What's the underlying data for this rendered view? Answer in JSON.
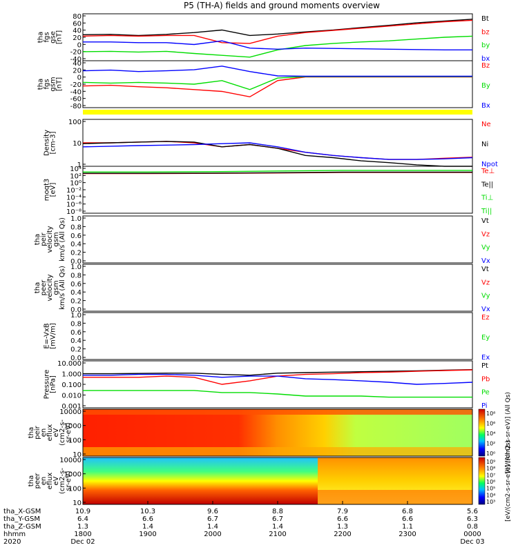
{
  "title": "P5 (TH-A) fields and ground moments overview",
  "colors": {
    "black": "#000000",
    "red": "#ff0000",
    "green": "#00dd00",
    "blue": "#0000ff",
    "yellow": "#ffff00"
  },
  "panels": [
    {
      "id": "fgs-gse",
      "ylabel_lines": [
        "tha",
        "fgs",
        "gse",
        "[nT]"
      ],
      "ticks": [
        "80",
        "60",
        "40",
        "20",
        "0",
        "-20",
        "-40"
      ],
      "legend": [
        {
          "label": "Bt",
          "color": "black"
        },
        {
          "label": "bz",
          "color": "red"
        },
        {
          "label": "by",
          "color": "green"
        },
        {
          "label": "bx",
          "color": "blue"
        }
      ]
    },
    {
      "id": "fgs-gsm",
      "ylabel_lines": [
        "tha",
        "fgs",
        "gsm",
        "[nT]"
      ],
      "ticks": [
        "40",
        "20",
        "0",
        "-20",
        "-40",
        "-60",
        "-80"
      ],
      "legend": [
        {
          "label": "Bz",
          "color": "red"
        },
        {
          "label": "By",
          "color": "green"
        },
        {
          "label": "Bx",
          "color": "blue"
        }
      ]
    },
    {
      "id": "density",
      "ylabel_lines": [
        "Density",
        "[cm-3]"
      ],
      "ticks": [
        "100",
        "10",
        "1"
      ],
      "legend": [
        {
          "label": "Ne",
          "color": "red"
        },
        {
          "label": "Ni",
          "color": "black"
        },
        {
          "label": "Npot",
          "color": "blue"
        }
      ]
    },
    {
      "id": "temperature",
      "ylabel_lines": [
        "moqt3",
        "[eV]"
      ],
      "ticks": [
        "10⁴",
        "10²",
        "10⁰",
        "10⁻²",
        "10⁻⁴",
        "10⁻⁶",
        "10⁻⁸"
      ],
      "legend": [
        {
          "label": "Te⊥",
          "color": "red"
        },
        {
          "label": "Te||",
          "color": "black"
        },
        {
          "label": "Ti⊥",
          "color": "green"
        },
        {
          "label": "Ti||",
          "color": "green"
        }
      ]
    },
    {
      "id": "peir-velocity",
      "ylabel_lines": [
        "tha",
        "peir",
        "velocity",
        "gsm",
        "km/s (All Qs)"
      ],
      "ticks": [
        "1.0",
        "0.8",
        "0.6",
        "0.4",
        "0.2",
        "0.0"
      ],
      "legend": [
        {
          "label": "Vt",
          "color": "black"
        },
        {
          "label": "Vz",
          "color": "red"
        },
        {
          "label": "Vy",
          "color": "green"
        },
        {
          "label": "Vx",
          "color": "blue"
        }
      ]
    },
    {
      "id": "peer-velocity",
      "ylabel_lines": [
        "tha",
        "peer",
        "velocity",
        "gsm",
        "km/s (All Qs)"
      ],
      "ticks": [
        "1.0",
        "0.8",
        "0.6",
        "0.4",
        "0.2",
        "0.0"
      ],
      "legend": [
        {
          "label": "Vt",
          "color": "black"
        },
        {
          "label": "Vz",
          "color": "red"
        },
        {
          "label": "Vy",
          "color": "green"
        },
        {
          "label": "Vx",
          "color": "blue"
        }
      ]
    },
    {
      "id": "efield",
      "ylabel_lines": [
        "E=-VxB",
        "[mV/m]"
      ],
      "ticks": [
        "1.0",
        "0.8",
        "0.6",
        "0.4",
        "0.2",
        "0.0"
      ],
      "legend": [
        {
          "label": "Ez",
          "color": "red"
        },
        {
          "label": "Ey",
          "color": "green"
        },
        {
          "label": "Ex",
          "color": "blue"
        }
      ]
    },
    {
      "id": "pressure",
      "ylabel_lines": [
        "Pressure",
        "[nPa]"
      ],
      "ticks": [
        "10.000",
        "1.000",
        "0.100",
        "0.010",
        "0.001"
      ],
      "legend": [
        {
          "label": "Pt",
          "color": "black"
        },
        {
          "label": "Pb",
          "color": "red"
        },
        {
          "label": "Pe",
          "color": "green"
        },
        {
          "label": "Pi",
          "color": "blue"
        }
      ]
    },
    {
      "id": "peir-spectrogram",
      "ylabel_lines": [
        "tha",
        "peir",
        "en",
        "eflux",
        "eV",
        "(cm2-s-",
        "sr-eV)"
      ],
      "ticks": [
        "10000",
        "1000",
        "100",
        "10"
      ],
      "colorbar_ticks": [
        "10⁸",
        "10⁶",
        "10⁴",
        "10²",
        "10⁰"
      ],
      "colorbar_label": "[eV/(cm2-s-sr-eV)] (All Qs)"
    },
    {
      "id": "peer-spectrogram",
      "ylabel_lines": [
        "tha",
        "peer",
        "en",
        "eflux",
        "eV",
        "(cm2-s-",
        "sr-eV)"
      ],
      "ticks": [
        "10000",
        "1000",
        "100",
        "10"
      ],
      "colorbar_ticks": [
        "10⁹",
        "10⁸",
        "10⁷",
        "10⁶",
        "10⁵",
        "10⁴",
        "10³"
      ],
      "colorbar_label": "[eV/(cm2-s-sr-eV)] (All Qs)"
    }
  ],
  "x_axis": {
    "rows": [
      {
        "label": "tha_X-GSM",
        "values": [
          "10.9",
          "10.3",
          "9.6",
          "8.8",
          "7.9",
          "6.8",
          "5.6"
        ]
      },
      {
        "label": "tha_Y-GSM",
        "values": [
          "6.4",
          "6.6",
          "6.7",
          "6.7",
          "6.6",
          "6.6",
          "6.3"
        ]
      },
      {
        "label": "tha_Z-GSM",
        "values": [
          "1.3",
          "1.4",
          "1.4",
          "1.4",
          "1.3",
          "1.1",
          "0.8"
        ]
      },
      {
        "label": "hhmm",
        "values": [
          "1800",
          "1900",
          "2000",
          "2100",
          "2200",
          "2300",
          "0000"
        ]
      },
      {
        "label": "2020",
        "values": [
          "Dec 02",
          "",
          "",
          "",
          "",
          "",
          "Dec 03"
        ]
      }
    ]
  },
  "chart_data": [
    {
      "type": "line",
      "title": "P5 (TH-A) fields and ground moments overview",
      "ylabel": "tha fgs gse [nT]",
      "ylim": [
        -40,
        90
      ],
      "x": [
        "1800",
        "1830",
        "1900",
        "1930",
        "2000",
        "2015",
        "2030",
        "2045",
        "2100",
        "2130",
        "2200",
        "2230",
        "2300",
        "2330",
        "0000"
      ],
      "series": [
        {
          "name": "Bt",
          "values": [
            32,
            33,
            30,
            33,
            38,
            45,
            30,
            34,
            40,
            45,
            52,
            58,
            65,
            70,
            75
          ]
        },
        {
          "name": "bz",
          "values": [
            28,
            30,
            28,
            30,
            30,
            10,
            8,
            28,
            38,
            44,
            50,
            56,
            62,
            68,
            72
          ]
        },
        {
          "name": "by",
          "values": [
            -15,
            -14,
            -16,
            -14,
            -20,
            -25,
            -30,
            -10,
            2,
            8,
            12,
            15,
            20,
            25,
            28
          ]
        },
        {
          "name": "bx",
          "values": [
            12,
            12,
            10,
            10,
            5,
            15,
            -5,
            -8,
            -5,
            -6,
            -7,
            -8,
            -9,
            -10,
            -10
          ]
        }
      ]
    },
    {
      "type": "line",
      "ylabel": "tha fgs gsm [nT]",
      "ylim": [
        -90,
        40
      ],
      "x": [
        "1800",
        "1830",
        "1900",
        "1930",
        "2000",
        "2015",
        "2030",
        "2045",
        "2100",
        "2130",
        "2200",
        "2230",
        "2300",
        "2330",
        "0000"
      ],
      "series": [
        {
          "name": "Bz",
          "values": [
            -30,
            -28,
            -32,
            -35,
            -40,
            -45,
            -60,
            -15,
            -5,
            -5,
            -5,
            -5,
            -5,
            -5,
            -5
          ]
        },
        {
          "name": "By",
          "values": [
            -20,
            -22,
            -20,
            -22,
            -25,
            -15,
            -40,
            -8,
            -4,
            -4,
            -4,
            -4,
            -4,
            -4,
            -4
          ]
        },
        {
          "name": "Bx",
          "values": [
            12,
            14,
            10,
            12,
            15,
            25,
            10,
            -2,
            -3,
            -3,
            -3,
            -3,
            -3,
            -3,
            -3
          ]
        }
      ]
    },
    {
      "type": "line",
      "ylabel": "Density [cm-3]",
      "ylim": [
        0.5,
        200
      ],
      "yscale": "log",
      "x": [
        "1800",
        "1830",
        "1900",
        "1930",
        "2000",
        "2015",
        "2030",
        "2045",
        "2100",
        "2130",
        "2200",
        "2230",
        "2300",
        "2330",
        "0000"
      ],
      "series": [
        {
          "name": "Ne",
          "values": [
            10,
            10,
            11,
            12,
            10,
            6,
            8,
            5,
            3,
            2,
            1.5,
            1.2,
            1.2,
            1.4,
            1.6
          ]
        },
        {
          "name": "Ni",
          "values": [
            9,
            10,
            11,
            12,
            11,
            6,
            8,
            5,
            2,
            1.5,
            1,
            0.8,
            0.6,
            0.5,
            0.5
          ]
        },
        {
          "name": "Npot",
          "values": [
            6,
            6.5,
            7,
            7.5,
            8,
            9,
            10,
            6,
            3,
            2,
            1.5,
            1.2,
            1.2,
            1.3,
            1.5
          ]
        }
      ]
    },
    {
      "type": "line",
      "ylabel": "moqt3 [eV]",
      "ylim": [
        1e-09,
        100000.0
      ],
      "yscale": "log",
      "x": [
        "1800",
        "1900",
        "2000",
        "2100",
        "2200",
        "2300",
        "0000"
      ],
      "series": [
        {
          "name": "Te⊥",
          "values": [
            700,
            700,
            800,
            1000,
            1500,
            1500,
            1500
          ]
        },
        {
          "name": "Te||",
          "values": [
            800,
            800,
            900,
            1200,
            1800,
            1800,
            1800
          ]
        },
        {
          "name": "Ti⊥",
          "values": [
            2000,
            2000,
            2500,
            4000,
            6000,
            6000,
            6000
          ]
        }
      ]
    },
    {
      "type": "line",
      "ylabel": "Pressure [nPa]",
      "ylim": [
        0.001,
        10
      ],
      "yscale": "log",
      "x": [
        "1800",
        "1830",
        "1900",
        "1930",
        "2000",
        "2015",
        "2030",
        "2045",
        "2100",
        "2130",
        "2200",
        "2230",
        "2300",
        "2330",
        "0000"
      ],
      "series": [
        {
          "name": "Pt",
          "values": [
            0.8,
            0.8,
            0.85,
            0.9,
            0.9,
            0.7,
            0.6,
            0.9,
            1.0,
            1.1,
            1.2,
            1.3,
            1.4,
            1.6,
            1.8
          ]
        },
        {
          "name": "Pb",
          "values": [
            0.4,
            0.4,
            0.4,
            0.5,
            0.4,
            0.1,
            0.2,
            0.5,
            0.7,
            0.8,
            1.0,
            1.1,
            1.3,
            1.5,
            1.7
          ]
        },
        {
          "name": "Pe",
          "values": [
            0.03,
            0.03,
            0.03,
            0.03,
            0.03,
            0.02,
            0.02,
            0.015,
            0.01,
            0.01,
            0.01,
            0.008,
            0.008,
            0.008,
            0.008
          ]
        },
        {
          "name": "Pi",
          "values": [
            0.6,
            0.6,
            0.7,
            0.7,
            0.6,
            0.4,
            0.5,
            0.5,
            0.3,
            0.25,
            0.2,
            0.15,
            0.1,
            0.12,
            0.15
          ]
        }
      ]
    }
  ]
}
